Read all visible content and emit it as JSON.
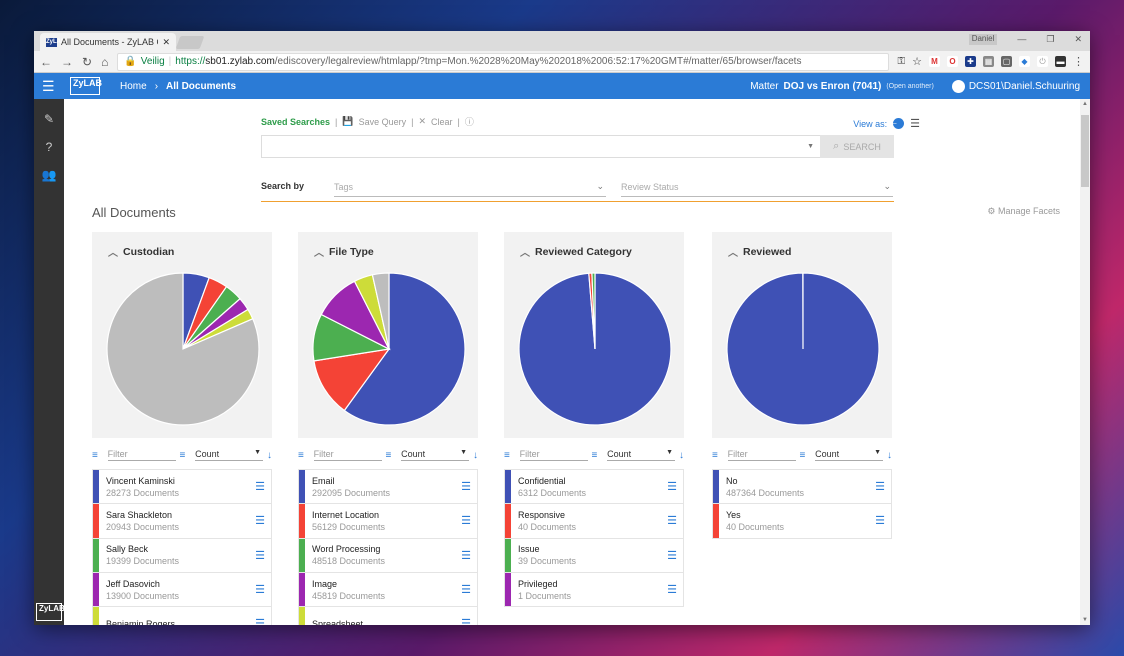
{
  "browser": {
    "tab_title": "All Documents - ZyLAB C",
    "tab_icon": "ZyLAB",
    "user_badge": "Daniel",
    "url_secure": "Veilig",
    "url_scheme": "https://",
    "url_host": "sb01.zylab.com",
    "url_path": "/ediscovery/legalreview/htmlapp/?tmp=Mon.%2028%20May%202018%2006:52:17%20GMT#/matter/65/browser/facets"
  },
  "appbar": {
    "logo": "ZyLAB",
    "home": "Home",
    "current": "All Documents",
    "matter_label": "Matter",
    "matter_name": "DOJ vs Enron (7041)",
    "open_another": "(Open another)",
    "user": "DCS01\\Daniel.Schuuring"
  },
  "query": {
    "saved": "Saved Searches",
    "save": "Save Query",
    "clear": "Clear",
    "search_button": "SEARCH",
    "view_as": "View as:",
    "search_by": "Search by",
    "tags_placeholder": "Tags",
    "review_placeholder": "Review Status"
  },
  "page": {
    "title": "All Documents",
    "manage": "Manage Facets"
  },
  "filters": {
    "filter_placeholder": "Filter",
    "count_label": "Count"
  },
  "colors": {
    "blue": "#3f51b5",
    "red": "#f44336",
    "green": "#4caf50",
    "purple": "#9c27b0",
    "lime": "#cddc39",
    "grey": "#bdbdbd",
    "accent": "#2b7bd6"
  },
  "facets": [
    {
      "title": "Custodian",
      "items": [
        {
          "name": "Vincent Kaminski",
          "count": "28273 Documents",
          "color": "#3f51b5"
        },
        {
          "name": "Sara Shackleton",
          "count": "20943 Documents",
          "color": "#f44336"
        },
        {
          "name": "Sally Beck",
          "count": "19399 Documents",
          "color": "#4caf50"
        },
        {
          "name": "Jeff Dasovich",
          "count": "13900 Documents",
          "color": "#9c27b0"
        },
        {
          "name": "Benjamin Rogers",
          "count": "",
          "color": "#cddc39"
        }
      ],
      "slices": [
        {
          "frac": 0.056,
          "color": "#3f51b5"
        },
        {
          "frac": 0.041,
          "color": "#f44336"
        },
        {
          "frac": 0.038,
          "color": "#4caf50"
        },
        {
          "frac": 0.028,
          "color": "#9c27b0"
        },
        {
          "frac": 0.022,
          "color": "#cddc39"
        },
        {
          "frac": 0.815,
          "color": "#bdbdbd"
        }
      ]
    },
    {
      "title": "File Type",
      "items": [
        {
          "name": "Email",
          "count": "292095 Documents",
          "color": "#3f51b5"
        },
        {
          "name": "Internet Location",
          "count": "56129 Documents",
          "color": "#f44336"
        },
        {
          "name": "Word Processing",
          "count": "48518 Documents",
          "color": "#4caf50"
        },
        {
          "name": "Image",
          "count": "45819 Documents",
          "color": "#9c27b0"
        },
        {
          "name": "Spreadsheet",
          "count": "",
          "color": "#cddc39"
        }
      ],
      "slices": [
        {
          "frac": 0.6,
          "color": "#3f51b5"
        },
        {
          "frac": 0.125,
          "color": "#f44336"
        },
        {
          "frac": 0.1,
          "color": "#4caf50"
        },
        {
          "frac": 0.1,
          "color": "#9c27b0"
        },
        {
          "frac": 0.04,
          "color": "#cddc39"
        },
        {
          "frac": 0.035,
          "color": "#bdbdbd"
        }
      ]
    },
    {
      "title": "Reviewed Category",
      "items": [
        {
          "name": "Confidential",
          "count": "6312 Documents",
          "color": "#3f51b5"
        },
        {
          "name": "Responsive",
          "count": "40 Documents",
          "color": "#f44336"
        },
        {
          "name": "Issue",
          "count": "39 Documents",
          "color": "#4caf50"
        },
        {
          "name": "Privileged",
          "count": "1 Documents",
          "color": "#9c27b0"
        }
      ],
      "slices": [
        {
          "frac": 0.987,
          "color": "#3f51b5"
        },
        {
          "frac": 0.0065,
          "color": "#f44336"
        },
        {
          "frac": 0.0065,
          "color": "#4caf50"
        }
      ]
    },
    {
      "title": "Reviewed",
      "items": [
        {
          "name": "No",
          "count": "487364 Documents",
          "color": "#3f51b5"
        },
        {
          "name": "Yes",
          "count": "40 Documents",
          "color": "#f44336"
        }
      ],
      "slices": [
        {
          "frac": 0.9995,
          "color": "#3f51b5"
        }
      ]
    }
  ]
}
